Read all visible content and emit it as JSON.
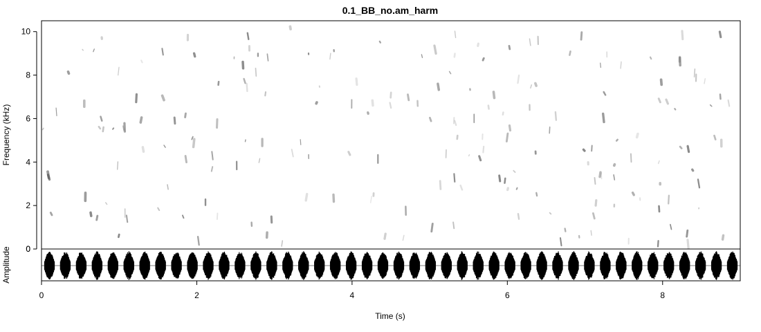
{
  "chart_data": {
    "type": "spectrogram",
    "title": "0.1_BB_no.am_harm",
    "xlabel": "Time (s)",
    "ylabel": "Frequency (kHz)",
    "ylabel_lower": "Amplitude",
    "xlim": [
      0,
      9
    ],
    "ylim": [
      0,
      10.5
    ],
    "xticks": [
      0,
      2,
      4,
      6,
      8
    ],
    "yticks": [
      0,
      2,
      4,
      6,
      8,
      10
    ],
    "amplitude_ticks": [
      0
    ],
    "colors": {
      "ink": "#000000",
      "mark": "#555555",
      "background": "#ffffff"
    },
    "blob_count": 200,
    "pulse_count": 44,
    "legend": "none",
    "grid": false
  }
}
